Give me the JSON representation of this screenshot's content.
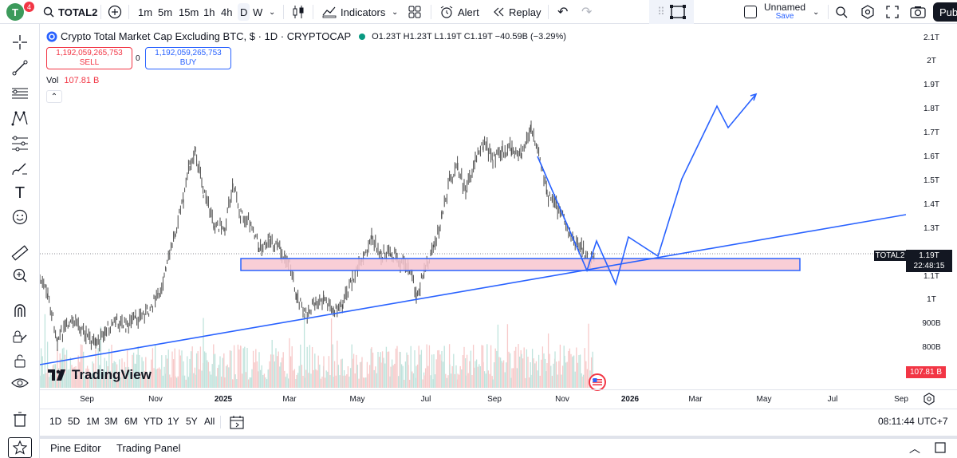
{
  "topbar": {
    "avatar_letter": "T",
    "notif_count": "4",
    "symbol": "TOTAL2",
    "intervals": [
      "1m",
      "5m",
      "15m",
      "1h",
      "4h",
      "D",
      "W"
    ],
    "indicators_label": "Indicators",
    "alert_label": "Alert",
    "replay_label": "Replay",
    "layout_name": "Unnamed",
    "save_label": "Save",
    "publish_label": "Pub"
  },
  "legend": {
    "title": "Crypto Total Market Cap Excluding BTC, $ · 1D · CRYPTOCAP",
    "ohlc": "O1.23T H1.23T L1.19T C1.19T −40.59B (−3.29%)",
    "sell_price": "1,192,059,265,753",
    "sell_label": "SELL",
    "spread": "0",
    "buy_price": "1,192,059,265,753",
    "buy_label": "BUY",
    "vol_label": "Vol",
    "vol_value": "107.81 B"
  },
  "yaxis": {
    "labels": [
      "2.1T",
      "2T",
      "1.9T",
      "1.8T",
      "1.7T",
      "1.6T",
      "1.5T",
      "1.4T",
      "1.3T",
      "1.1T",
      "1T",
      "900B",
      "800B"
    ],
    "price_tag_symbol": "TOTAL2",
    "price_tag_value": "1.19T",
    "price_tag_time": "22:48:15",
    "vol_tag": "107.81 B"
  },
  "xaxis": {
    "labels": [
      "Sep",
      "Nov",
      "2025",
      "Mar",
      "May",
      "Jul",
      "Sep",
      "Nov",
      "2026",
      "Mar",
      "May",
      "Jul",
      "Sep"
    ]
  },
  "ranges": {
    "buttons": [
      "1D",
      "5D",
      "1M",
      "3M",
      "6M",
      "YTD",
      "1Y",
      "5Y",
      "All"
    ],
    "clock": "08:11:44 UTC+7"
  },
  "bottombar": {
    "pine_editor": "Pine Editor",
    "trading_panel": "Trading Panel"
  },
  "watermark": "TradingView",
  "colors": {
    "accent": "#2962ff",
    "down": "#f23645",
    "drawing": "#2962ff",
    "zone_fill": "#f8c6cf"
  }
}
